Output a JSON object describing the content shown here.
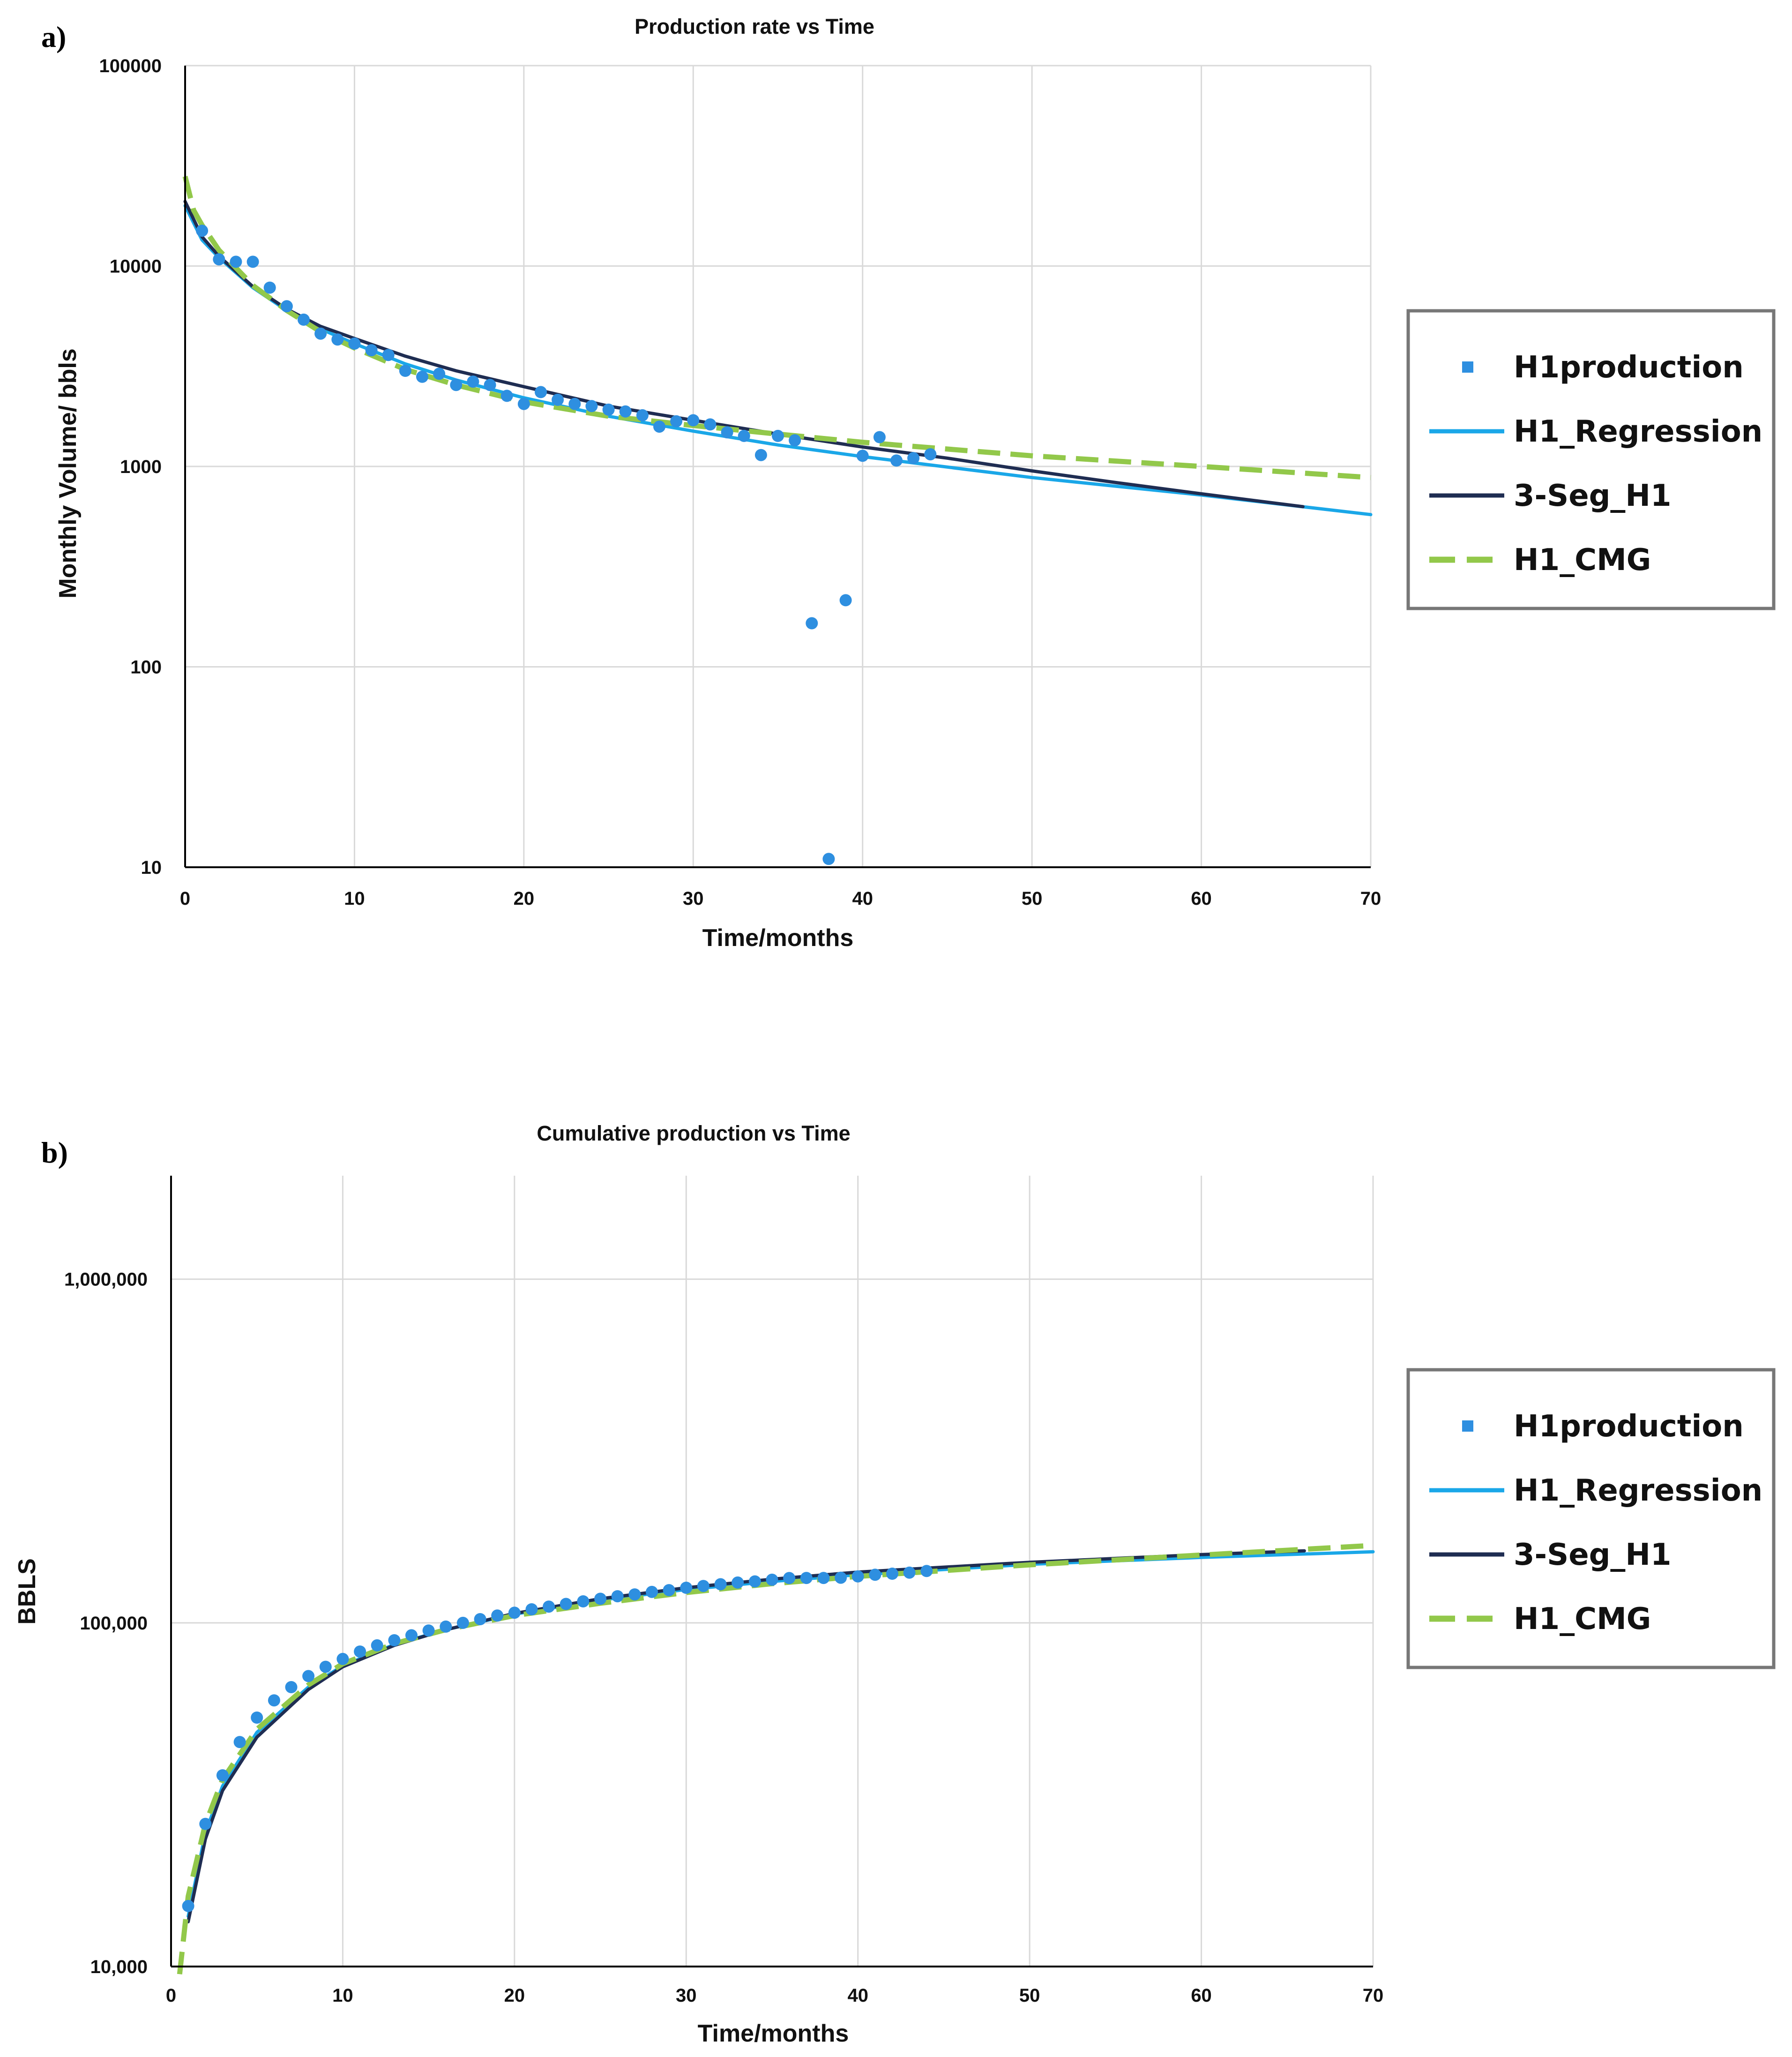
{
  "panels": [
    {
      "label": "a)"
    },
    {
      "label": "b)"
    }
  ],
  "legend": {
    "items": [
      {
        "name": "H1production",
        "color": "#2E8FE0",
        "style": "marker"
      },
      {
        "name": "H1_Regression",
        "color": "#1AA7E8",
        "style": "solid"
      },
      {
        "name": "3-Seg_H1",
        "color": "#1F2D52",
        "style": "solid"
      },
      {
        "name": "H1_CMG",
        "color": "#92C84A",
        "style": "dashed"
      }
    ]
  },
  "chart_data": [
    {
      "type": "line",
      "title": "Production rate vs Time",
      "xlabel": "Time/months",
      "ylabel": "Monthly Volume/ bbls",
      "yscale": "log",
      "xlim": [
        0,
        70
      ],
      "ylim": [
        10,
        100000
      ],
      "x_ticks": [
        "0",
        "10",
        "20",
        "30",
        "40",
        "50",
        "60",
        "70"
      ],
      "y_ticks": [
        "10",
        "100",
        "1000",
        "10000",
        "100000"
      ],
      "grid": true,
      "legend_position": "right",
      "series": [
        {
          "name": "H1production",
          "kind": "scatter",
          "x": [
            1,
            2,
            3,
            4,
            5,
            6,
            7,
            8,
            9,
            10,
            11,
            12,
            13,
            14,
            15,
            16,
            17,
            18,
            19,
            20,
            21,
            22,
            23,
            24,
            25,
            26,
            27,
            28,
            29,
            30,
            31,
            32,
            33,
            34,
            35,
            36,
            37,
            38,
            39,
            40,
            41,
            42,
            43,
            44
          ],
          "y": [
            15000,
            10800,
            10500,
            10500,
            7800,
            6300,
            5400,
            4600,
            4300,
            4100,
            3800,
            3600,
            3000,
            2800,
            2900,
            2550,
            2650,
            2550,
            2250,
            2050,
            2350,
            2150,
            2050,
            2000,
            1920,
            1880,
            1800,
            1580,
            1680,
            1700,
            1620,
            1480,
            1420,
            1140,
            1420,
            1350,
            165,
            11,
            215,
            1130,
            1400,
            1070,
            1100,
            1150
          ]
        },
        {
          "name": "H1_Regression",
          "kind": "line",
          "x": [
            0,
            1,
            2,
            4,
            6,
            8,
            10,
            13,
            16,
            20,
            25,
            30,
            35,
            40,
            50,
            60,
            70
          ],
          "y": [
            20000,
            13500,
            11000,
            7800,
            6000,
            4850,
            4100,
            3250,
            2700,
            2200,
            1780,
            1500,
            1280,
            1120,
            880,
            720,
            575
          ]
        },
        {
          "name": "3-Seg_H1",
          "kind": "line",
          "x": [
            0,
            1,
            2,
            4,
            6,
            8,
            10,
            13,
            16,
            20,
            25,
            30,
            35,
            40,
            45,
            50,
            55,
            60,
            66
          ],
          "y": [
            21000,
            14000,
            11200,
            7900,
            6100,
            5000,
            4350,
            3550,
            3000,
            2500,
            2000,
            1700,
            1450,
            1250,
            1100,
            950,
            830,
            730,
            630
          ]
        },
        {
          "name": "H1_CMG",
          "kind": "line",
          "x": [
            0,
            0.5,
            1,
            2,
            4,
            6,
            8,
            10,
            13,
            16,
            20,
            25,
            30,
            35,
            40,
            50,
            60,
            70
          ],
          "y": [
            28000,
            19000,
            16000,
            12000,
            8000,
            6000,
            4700,
            3900,
            3050,
            2550,
            2100,
            1780,
            1600,
            1450,
            1320,
            1130,
            1000,
            880
          ]
        }
      ]
    },
    {
      "type": "line",
      "title": "Cumulative production vs Time",
      "xlabel": "Time/months",
      "ylabel": "BBLS",
      "yscale": "log",
      "xlim": [
        0,
        70
      ],
      "ylim": [
        10000,
        2000000
      ],
      "x_ticks": [
        "0",
        "10",
        "20",
        "30",
        "40",
        "50",
        "60",
        "70"
      ],
      "y_ticks": [
        "10,000",
        "100,000",
        "1,000,000"
      ],
      "y_tick_values": [
        10000,
        100000,
        1000000
      ],
      "grid": true,
      "legend_position": "right",
      "series": [
        {
          "name": "H1production",
          "kind": "scatter",
          "x": [
            1,
            2,
            3,
            4,
            5,
            6,
            7,
            8,
            9,
            10,
            11,
            12,
            13,
            14,
            15,
            16,
            17,
            18,
            19,
            20,
            21,
            22,
            23,
            24,
            25,
            26,
            27,
            28,
            29,
            30,
            31,
            32,
            33,
            34,
            35,
            36,
            37,
            38,
            39,
            40,
            41,
            42,
            43,
            44
          ],
          "y": [
            15000,
            26000,
            36000,
            45000,
            53000,
            59500,
            65000,
            70000,
            74500,
            78500,
            82500,
            86000,
            89000,
            92000,
            95000,
            97500,
            100000,
            102500,
            105000,
            107000,
            109500,
            111500,
            113500,
            115500,
            117500,
            119500,
            121000,
            123000,
            124500,
            126500,
            128000,
            129500,
            131000,
            132000,
            133500,
            135000,
            135100,
            135100,
            135300,
            136500,
            138000,
            139000,
            140000,
            141500
          ]
        },
        {
          "name": "H1_Regression",
          "kind": "line",
          "x": [
            1,
            2,
            3,
            5,
            8,
            10,
            13,
            16,
            20,
            25,
            30,
            35,
            40,
            50,
            60,
            70
          ],
          "y": [
            14000,
            24500,
            33500,
            48000,
            65000,
            75000,
            86500,
            95500,
            106000,
            116500,
            125000,
            132000,
            138000,
            148000,
            155000,
            161000
          ]
        },
        {
          "name": "3-Seg_H1",
          "kind": "line",
          "x": [
            1,
            2,
            3,
            5,
            8,
            10,
            13,
            16,
            20,
            25,
            30,
            35,
            40,
            50,
            60,
            66
          ],
          "y": [
            13500,
            23500,
            32500,
            46500,
            64000,
            74500,
            86000,
            95500,
            106500,
            117500,
            126500,
            134000,
            140500,
            150000,
            158000,
            162000
          ]
        },
        {
          "name": "H1_CMG",
          "kind": "line",
          "x": [
            0.5,
            1,
            2,
            3,
            5,
            8,
            10,
            13,
            16,
            20,
            25,
            30,
            35,
            40,
            50,
            60,
            70
          ],
          "y": [
            9500,
            16000,
            26000,
            35000,
            49000,
            66000,
            76000,
            87000,
            95500,
            105000,
            114000,
            122500,
            130000,
            136500,
            147500,
            157500,
            168000
          ]
        }
      ]
    }
  ]
}
